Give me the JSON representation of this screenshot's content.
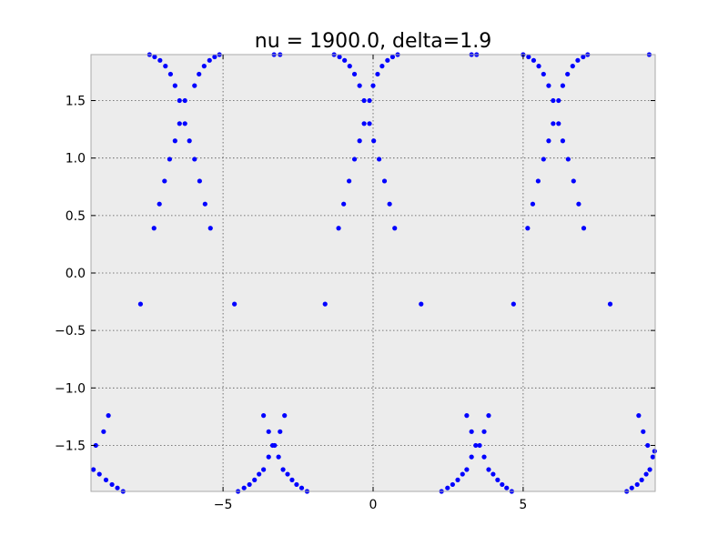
{
  "chart_data": {
    "type": "scatter",
    "title": "nu = 1900.0, delta=1.9",
    "xlabel": "",
    "ylabel": "",
    "xlim": [
      -9.4,
      9.4
    ],
    "ylim": [
      -1.9,
      1.9
    ],
    "grid": true,
    "x_ticks": [
      -5,
      0,
      5
    ],
    "x_tick_labels": [
      "−5",
      "0",
      "5"
    ],
    "y_ticks": [
      -1.5,
      -1.0,
      -0.5,
      0.0,
      0.5,
      1.0,
      1.5
    ],
    "y_tick_labels": [
      "−1.5",
      "−1.0",
      "−0.5",
      "0.0",
      "0.5",
      "1.0",
      "1.5"
    ],
    "colors": {
      "points": "#0000ff",
      "plot_background": "#ececec",
      "grid": "#555555",
      "frame": "#aaaaaa"
    },
    "series": [
      {
        "points": [
          [
            -9.32,
            -1.71
          ],
          [
            -9.24,
            -1.5
          ],
          [
            -9.12,
            -1.75
          ],
          [
            -8.98,
            -1.38
          ],
          [
            -8.9,
            -1.8
          ],
          [
            -8.82,
            -1.24
          ],
          [
            -8.7,
            -1.84
          ],
          [
            -8.52,
            -1.87
          ],
          [
            -8.33,
            -1.9
          ],
          [
            -7.75,
            -0.27
          ],
          [
            -7.45,
            1.9
          ],
          [
            -7.28,
            1.88
          ],
          [
            -7.1,
            1.85
          ],
          [
            -6.92,
            1.8
          ],
          [
            -6.75,
            1.73
          ],
          [
            -6.6,
            1.63
          ],
          [
            -6.45,
            1.5
          ],
          [
            -6.27,
            1.5
          ],
          [
            -6.45,
            1.3
          ],
          [
            -6.27,
            1.3
          ],
          [
            -6.6,
            1.15
          ],
          [
            -6.12,
            1.15
          ],
          [
            -6.78,
            0.99
          ],
          [
            -5.95,
            0.99
          ],
          [
            -6.95,
            0.8
          ],
          [
            -5.78,
            0.8
          ],
          [
            -7.12,
            0.6
          ],
          [
            -5.6,
            0.6
          ],
          [
            -7.3,
            0.39
          ],
          [
            -5.42,
            0.39
          ],
          [
            -5.95,
            1.63
          ],
          [
            -5.8,
            1.73
          ],
          [
            -5.63,
            1.8
          ],
          [
            -5.45,
            1.85
          ],
          [
            -5.28,
            1.88
          ],
          [
            -5.12,
            1.9
          ],
          [
            -4.62,
            -0.27
          ],
          [
            -4.5,
            -1.9
          ],
          [
            -4.3,
            -1.87
          ],
          [
            -4.12,
            -1.84
          ],
          [
            -3.95,
            -1.8
          ],
          [
            -3.8,
            -1.75
          ],
          [
            -3.65,
            -1.71
          ],
          [
            -3.48,
            -1.6
          ],
          [
            -3.35,
            -1.5
          ],
          [
            -3.48,
            -1.38
          ],
          [
            -3.65,
            -1.24
          ],
          [
            -3.28,
            -1.5
          ],
          [
            -3.15,
            -1.6
          ],
          [
            -3.0,
            -1.71
          ],
          [
            -2.85,
            -1.75
          ],
          [
            -2.7,
            -1.8
          ],
          [
            -2.55,
            -1.84
          ],
          [
            -2.38,
            -1.87
          ],
          [
            -2.2,
            -1.9
          ],
          [
            -3.1,
            -1.38
          ],
          [
            -2.95,
            -1.24
          ],
          [
            -3.3,
            1.9
          ],
          [
            -3.1,
            1.9
          ],
          [
            -1.6,
            -0.27
          ],
          [
            -1.3,
            1.9
          ],
          [
            -1.12,
            1.88
          ],
          [
            -0.95,
            1.85
          ],
          [
            -0.78,
            1.8
          ],
          [
            -0.62,
            1.73
          ],
          [
            -0.45,
            1.63
          ],
          [
            -0.3,
            1.5
          ],
          [
            -0.12,
            1.5
          ],
          [
            -0.3,
            1.3
          ],
          [
            -0.12,
            1.3
          ],
          [
            -0.45,
            1.15
          ],
          [
            0.02,
            1.15
          ],
          [
            -0.62,
            0.99
          ],
          [
            0.2,
            0.99
          ],
          [
            -0.8,
            0.8
          ],
          [
            0.38,
            0.8
          ],
          [
            -0.98,
            0.6
          ],
          [
            0.55,
            0.6
          ],
          [
            -1.15,
            0.39
          ],
          [
            0.72,
            0.39
          ],
          [
            0.0,
            1.63
          ],
          [
            0.15,
            1.73
          ],
          [
            0.3,
            1.8
          ],
          [
            0.48,
            1.85
          ],
          [
            0.65,
            1.88
          ],
          [
            0.82,
            1.9
          ],
          [
            1.6,
            -0.27
          ],
          [
            2.28,
            -1.9
          ],
          [
            2.48,
            -1.87
          ],
          [
            2.65,
            -1.84
          ],
          [
            2.82,
            -1.8
          ],
          [
            2.98,
            -1.75
          ],
          [
            3.12,
            -1.71
          ],
          [
            3.28,
            -1.6
          ],
          [
            3.42,
            -1.5
          ],
          [
            3.28,
            -1.38
          ],
          [
            3.12,
            -1.24
          ],
          [
            3.55,
            -1.5
          ],
          [
            3.7,
            -1.6
          ],
          [
            3.85,
            -1.71
          ],
          [
            4.0,
            -1.75
          ],
          [
            4.15,
            -1.8
          ],
          [
            4.3,
            -1.84
          ],
          [
            4.45,
            -1.87
          ],
          [
            4.62,
            -1.9
          ],
          [
            3.7,
            -1.38
          ],
          [
            3.85,
            -1.24
          ],
          [
            3.28,
            1.9
          ],
          [
            3.45,
            1.9
          ],
          [
            4.68,
            -0.27
          ],
          [
            5.0,
            1.9
          ],
          [
            5.18,
            1.88
          ],
          [
            5.35,
            1.85
          ],
          [
            5.52,
            1.8
          ],
          [
            5.68,
            1.73
          ],
          [
            5.85,
            1.63
          ],
          [
            6.0,
            1.5
          ],
          [
            6.18,
            1.5
          ],
          [
            6.0,
            1.3
          ],
          [
            6.18,
            1.3
          ],
          [
            5.85,
            1.15
          ],
          [
            6.32,
            1.15
          ],
          [
            5.68,
            0.99
          ],
          [
            6.5,
            0.99
          ],
          [
            5.5,
            0.8
          ],
          [
            6.68,
            0.8
          ],
          [
            5.32,
            0.6
          ],
          [
            6.85,
            0.6
          ],
          [
            5.15,
            0.39
          ],
          [
            7.02,
            0.39
          ],
          [
            6.32,
            1.63
          ],
          [
            6.48,
            1.73
          ],
          [
            6.65,
            1.8
          ],
          [
            6.82,
            1.85
          ],
          [
            7.0,
            1.88
          ],
          [
            7.15,
            1.9
          ],
          [
            7.9,
            -0.27
          ],
          [
            8.45,
            -1.9
          ],
          [
            8.62,
            -1.87
          ],
          [
            8.8,
            -1.84
          ],
          [
            8.95,
            -1.8
          ],
          [
            9.1,
            -1.75
          ],
          [
            9.22,
            -1.71
          ],
          [
            9.32,
            -1.6
          ],
          [
            9.38,
            -1.55
          ],
          [
            8.85,
            -1.24
          ],
          [
            9.0,
            -1.38
          ],
          [
            9.15,
            -1.5
          ],
          [
            9.2,
            1.9
          ]
        ]
      }
    ]
  }
}
